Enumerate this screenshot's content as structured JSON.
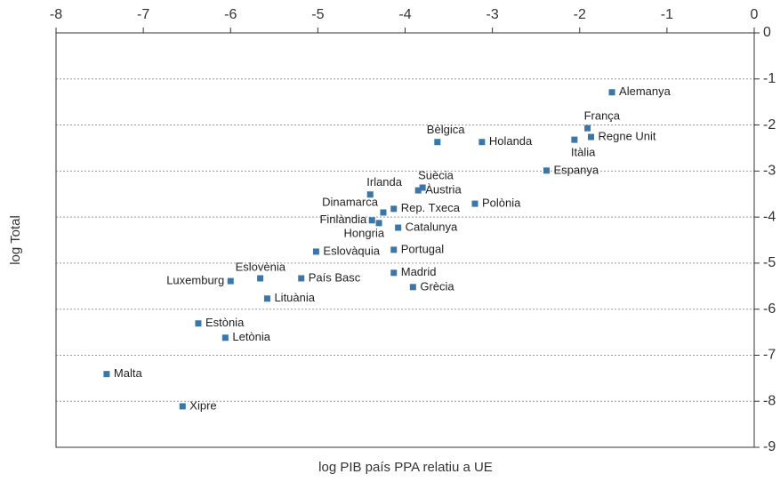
{
  "chart_data": {
    "type": "scatter",
    "xlabel": "log PIB país PPA relatiu a UE",
    "ylabel": "log Total",
    "color": "#3a76a8",
    "grid": true,
    "xlim": [
      -8,
      0
    ],
    "xticks": [
      -8,
      -7,
      -6,
      -5,
      -4,
      -3,
      -2,
      -1,
      0
    ],
    "ylim": [
      -9,
      0
    ],
    "yticks": [
      0,
      -1,
      -2,
      -3,
      -4,
      -5,
      -6,
      -7,
      -8,
      -9
    ],
    "labels": [
      "Alemanya",
      "França",
      "Regne Unit",
      "Itàlia",
      "Bèlgica",
      "Holanda",
      "Espanya",
      "Suècia",
      "Àustria",
      "Irlanda",
      "Polònia",
      "Rep. Txeca",
      "Dinamarca",
      "Finlàndia",
      "Hongria",
      "Catalunya",
      "Portugal",
      "Eslovàquia",
      "Madrid",
      "Eslovènia",
      "País Basc",
      "Luxemburg",
      "Grècia",
      "Lituània",
      "Estònia",
      "Letònia",
      "Malta",
      "Xipre"
    ],
    "x": [
      -1.63,
      -1.91,
      -1.87,
      -2.06,
      -3.63,
      -3.12,
      -2.38,
      -3.8,
      -3.85,
      -4.4,
      -3.2,
      -4.13,
      -4.25,
      -4.38,
      -4.3,
      -4.08,
      -4.13,
      -5.02,
      -4.13,
      -5.66,
      -5.19,
      -6.0,
      -3.91,
      -5.58,
      -6.37,
      -6.06,
      -7.42,
      -6.55
    ],
    "y": [
      -1.29,
      -2.07,
      -2.26,
      -2.32,
      -2.37,
      -2.37,
      -2.99,
      -3.36,
      -3.42,
      -3.51,
      -3.71,
      -3.82,
      -3.9,
      -4.07,
      -4.13,
      -4.23,
      -4.71,
      -4.75,
      -5.21,
      -5.33,
      -5.33,
      -5.39,
      -5.52,
      -5.77,
      -6.31,
      -6.62,
      -7.41,
      -8.11
    ]
  }
}
